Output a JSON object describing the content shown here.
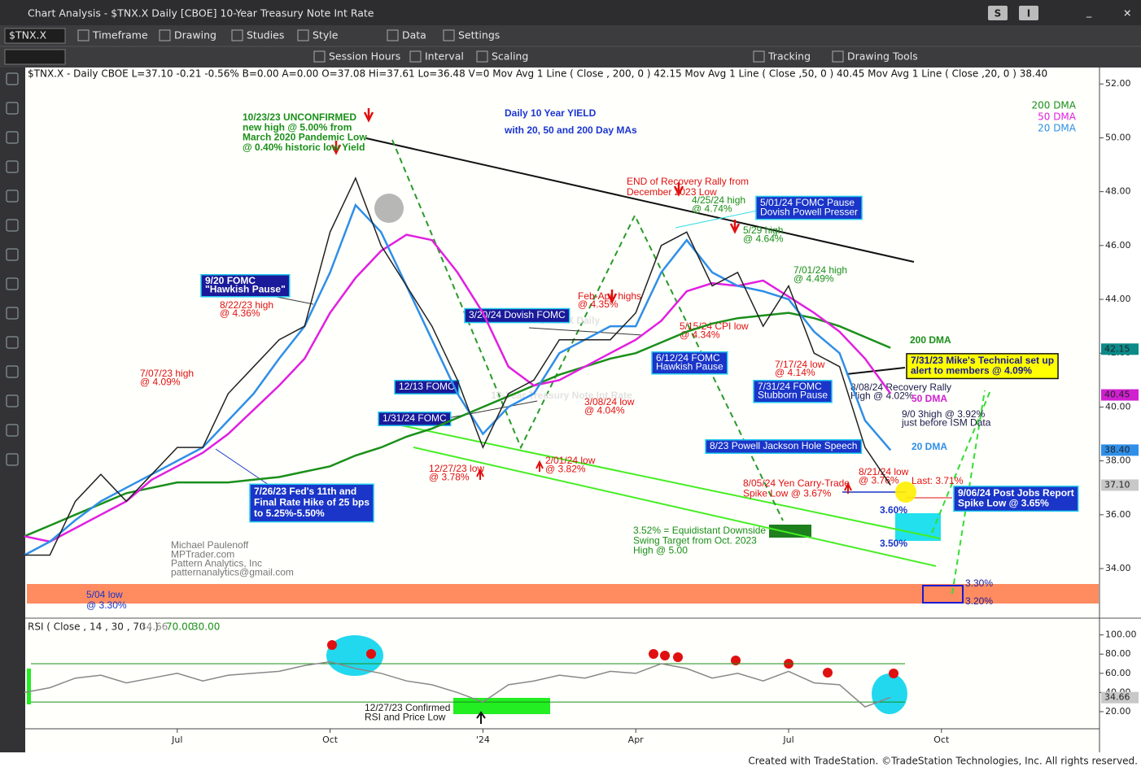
{
  "window": {
    "title": "Chart Analysis - $TNX.X Daily [CBOE] 10-Year Treasury Note Int Rate",
    "buttons": [
      "S",
      "I"
    ]
  },
  "toolbar": {
    "symbol": "$TNX.X",
    "items": [
      "Timeframe",
      "Drawing",
      "Studies",
      "Style",
      "Data",
      "Settings"
    ]
  },
  "toolbar2": [
    "Session Hours",
    "Interval",
    "Scaling",
    "Tracking",
    "Drawing Tools"
  ],
  "info_line": "$TNX.X - Daily  CBOE  L=37.10 -0.21 -0.56% B=0.00 A=0.00 O=37.08 Hi=37.61 Lo=36.48 V=0  Mov Avg 1 Line ( Close , 200, 0 ) 42.15  Mov Avg 1 Line ( Close ,50, 0 ) 40.45  Mov Avg 1 Line ( Close ,20, 0 ) 38.40",
  "chart_data": [
    {
      "type": "line",
      "color": "#222222",
      "categories": [
        null,
        null,
        null,
        null,
        null,
        null,
        "Jul",
        null,
        null,
        null,
        null,
        null,
        "Oct",
        null,
        null,
        null,
        null,
        null,
        "'24",
        null,
        null,
        null,
        null,
        null,
        "Apr",
        null,
        null,
        null,
        null,
        null,
        "Jul",
        null,
        null,
        null,
        null,
        null,
        "Oct"
      ],
      "values": [
        34.5,
        34.5,
        36.5,
        37.5,
        36.5,
        37.5,
        38.5,
        38.5,
        40.5,
        41.5,
        42.5,
        43.0,
        46.5,
        48.5,
        46.0,
        44.5,
        43.0,
        41.0,
        38.5,
        40.5,
        41.0,
        42.5,
        42.5,
        42.5,
        43.5,
        46.0,
        46.5,
        44.5,
        45.0,
        43.0,
        44.5,
        42.0,
        41.5,
        38.5,
        37.1,
        null,
        null
      ],
      "series": [
        {
          "name": "200 DMA",
          "color": "#1a8f1a",
          "values": [
            35.2,
            35.6,
            36.0,
            36.4,
            36.8,
            37.0,
            37.2,
            37.2,
            37.2,
            37.3,
            37.4,
            37.6,
            37.8,
            38.2,
            38.5,
            38.9,
            39.2,
            39.6,
            40.0,
            40.4,
            40.8,
            41.2,
            41.5,
            41.8,
            42.0,
            42.4,
            42.8,
            43.1,
            43.3,
            43.4,
            43.5,
            43.3,
            43.0,
            42.6,
            42.2,
            null,
            null
          ]
        },
        {
          "name": "50 DMA",
          "color": "#e020e0",
          "values": [
            35.2,
            35.0,
            35.5,
            36.0,
            36.5,
            37.3,
            37.8,
            38.3,
            39.0,
            39.9,
            40.8,
            41.8,
            43.5,
            44.8,
            45.8,
            46.4,
            46.2,
            45.0,
            43.5,
            41.5,
            40.8,
            41.0,
            41.5,
            42.0,
            42.5,
            43.2,
            44.3,
            44.6,
            44.5,
            44.7,
            44.1,
            43.5,
            42.8,
            41.8,
            40.5,
            null,
            null
          ]
        },
        {
          "name": "20 DMA",
          "color": "#2f8fe8",
          "values": [
            34.5,
            35.0,
            35.8,
            36.5,
            37.0,
            37.5,
            38.0,
            38.5,
            39.5,
            40.5,
            41.8,
            43.0,
            45.0,
            47.5,
            46.5,
            44.5,
            42.5,
            40.5,
            39.0,
            40.0,
            40.5,
            42.0,
            42.5,
            43.0,
            43.0,
            45.0,
            46.2,
            45.0,
            44.5,
            44.3,
            44.0,
            42.8,
            42.0,
            39.5,
            38.4,
            null,
            null
          ]
        }
      ],
      "ylim": [
        32.4,
        52.4
      ],
      "yticks": [
        {
          "value": 34,
          "label": "34.00"
        },
        {
          "value": 36,
          "label": "36.00"
        },
        {
          "value": 38,
          "label": "38.00"
        },
        {
          "value": 40,
          "label": "40.00"
        },
        {
          "value": 42,
          "label": "42.00"
        },
        {
          "value": 44,
          "label": "44.00"
        },
        {
          "value": 46,
          "label": "46.00"
        },
        {
          "value": 48,
          "label": "48.00"
        },
        {
          "value": 50,
          "label": "50.00"
        },
        {
          "value": 52,
          "label": "52.00"
        }
      ],
      "price_tags": [
        {
          "value": 42.15,
          "label": "42.15",
          "color": "#0b8a8a"
        },
        {
          "value": 40.45,
          "label": "40.45",
          "color": "#d020d0"
        },
        {
          "value": 38.4,
          "label": "38.40",
          "color": "#2f8fe8"
        },
        {
          "value": 37.1,
          "label": "37.10",
          "color": "#c8c8c8"
        }
      ]
    },
    {
      "type": "line",
      "title": "RSI ( Close , 14 , 30 , 70 , )",
      "color": "#888888",
      "values": [
        40,
        45,
        55,
        58,
        50,
        55,
        60,
        52,
        58,
        60,
        62,
        68,
        72,
        65,
        60,
        52,
        48,
        40,
        30,
        48,
        52,
        58,
        55,
        62,
        60,
        70,
        65,
        55,
        60,
        52,
        62,
        50,
        48,
        25,
        35,
        null,
        null
      ],
      "readouts": [
        {
          "value": 34.66,
          "label": "34.66"
        },
        {
          "value": 70,
          "label": "70.00"
        },
        {
          "value": 30,
          "label": "30.00"
        }
      ],
      "ylim": [
        3,
        109
      ],
      "yticks": [
        {
          "value": 20,
          "label": "20.00"
        },
        {
          "value": 40,
          "label": "40.00"
        },
        {
          "value": 60,
          "label": "60.00"
        },
        {
          "value": 80,
          "label": "80.00"
        },
        {
          "value": 100,
          "label": "100.00"
        }
      ]
    }
  ],
  "annotations": [
    {
      "lines": [
        "$TNX.X Daily"
      ],
      "color": "#e2e2e2"
    },
    {
      "lines": [
        "10-Year Treasury Note Int Rate"
      ],
      "color": "#e2e2e2"
    },
    {
      "lines": [
        "10/23/23 UNCONFIRMED",
        "new high @ 5.00% from",
        "March 2020 Pandemic Low",
        "@ 0.40% historic low Yield"
      ],
      "color": "#1a8f1a"
    },
    {
      "lines": [
        "Daily 10 Year YIELD",
        "with 20, 50 and 200 Day MAs"
      ],
      "color": "#1a35d0"
    },
    {
      "lines": [
        "END of Recovery Rally from",
        "December 2023 Low"
      ],
      "color": "#e01010"
    },
    {
      "lines": [
        "4/25/24 high",
        "@ 4.74%"
      ],
      "color": "#1a8f1a"
    },
    {
      "lines": [
        "5/01/24 FOMC Pause",
        "Dovish Powell Presser"
      ],
      "color": "#ffffff",
      "background": "#1a35c8"
    },
    {
      "lines": [
        "5/29 high",
        "@ 4.64%"
      ],
      "color": "#1a8f1a"
    },
    {
      "lines": [
        "7/01/24 high",
        "@ 4.49%"
      ],
      "color": "#1a8f1a"
    },
    {
      "lines": [
        "9/20 FOMC",
        "\"Hawkish Pause\""
      ],
      "color": "#ffffff",
      "background": "#1a1a9a"
    },
    {
      "lines": [
        "8/22/23 high",
        "@ 4.36%"
      ],
      "color": "#e01010"
    },
    {
      "lines": [
        "Feb-Apr. highs",
        "@ 4.35%"
      ],
      "color": "#e01010"
    },
    {
      "lines": [
        "3/20/24 Dovish FOMC"
      ],
      "color": "#ffffff",
      "background": "#1a1a9a"
    },
    {
      "lines": [
        "5/15/24 CPI low",
        "@ 4.34%"
      ],
      "color": "#e01010"
    },
    {
      "lines": [
        "200 DMA"
      ],
      "color": "#1a8f1a"
    },
    {
      "lines": [
        "6/12/24 FOMC",
        "Hawkish Pause"
      ],
      "color": "#ffffff",
      "background": "#1a35c8"
    },
    {
      "lines": [
        "7/17/24 low",
        "@ 4.14%"
      ],
      "color": "#e01010"
    },
    {
      "lines": [
        "7/31/23 Mike's Technical set up",
        "alert to members @ 4.09%"
      ],
      "color": "#1a1a9a",
      "background": "#ffff00"
    },
    {
      "lines": [
        "7/07/23 high",
        "@ 4.09%"
      ],
      "color": "#e01010"
    },
    {
      "lines": [
        "12/13 FOMC"
      ],
      "color": "#ffffff",
      "background": "#1a1a9a"
    },
    {
      "lines": [
        "7/31/24 FOMC",
        "Stubborn Pause"
      ],
      "color": "#ffffff",
      "background": "#1a35c8"
    },
    {
      "lines": [
        "8/08/24 Recovery Rally",
        "High @ 4.02%"
      ],
      "color": "#1a1a4a"
    },
    {
      "lines": [
        "50 DMA"
      ],
      "color": "#d020d0"
    },
    {
      "lines": [
        "3/08/24 low",
        "@ 4.04%"
      ],
      "color": "#e01010"
    },
    {
      "lines": [
        "9/0 3high @ 3.92%",
        "just before ISM Data"
      ],
      "color": "#1a1a4a"
    },
    {
      "lines": [
        "1/31/24 FOMC"
      ],
      "color": "#ffffff",
      "background": "#1a1a9a"
    },
    {
      "lines": [
        "8/23 Powell Jackson Hole Speech"
      ],
      "color": "#ffffff",
      "background": "#1a35c8"
    },
    {
      "lines": [
        "20 DMA"
      ],
      "color": "#2f8fe8"
    },
    {
      "lines": [
        "2/01/24 low",
        "@ 3.82%"
      ],
      "color": "#e01010"
    },
    {
      "lines": [
        "12/27/23 low",
        "@ 3.78%"
      ],
      "color": "#e01010"
    },
    {
      "lines": [
        "8/21/24 low",
        "@ 3.76%"
      ],
      "color": "#e01010"
    },
    {
      "lines": [
        "Last: 3.71%"
      ],
      "color": "#e01010"
    },
    {
      "lines": [
        "8/05/24 Yen Carry-Trade",
        "Spike Low @ 3.67%"
      ],
      "color": "#e01010"
    },
    {
      "lines": [
        "7/26/23 Fed's 11th and",
        "Final Rate Hike of 25 bps",
        "to 5.25%-5.50%"
      ],
      "color": "#ffffff",
      "background": "#1a35c8"
    },
    {
      "lines": [
        "9/06/24 Post Jobs Report",
        "Spike Low @ 3.65%"
      ],
      "color": "#ffffff",
      "background": "#1a35c8"
    },
    {
      "lines": [
        "3.60%"
      ],
      "color": "#1a35c8"
    },
    {
      "lines": [
        "3.52% = Equidistant Downside",
        "Swing Target from Oct. 2023",
        "High @ 5.00"
      ],
      "color": "#1a8f1a"
    },
    {
      "lines": [
        "3.50%"
      ],
      "color": "#1a35c8"
    },
    {
      "lines": [
        "Michael Paulenoff",
        "MPTrader.com",
        "Pattern Analytics, Inc",
        "patternanalytics@gmail.com"
      ],
      "color": "#777777"
    },
    {
      "lines": [
        "5/04 low",
        "@ 3.30%"
      ],
      "color": "#1a35c8"
    },
    {
      "lines": [
        "3.30%"
      ],
      "color": "#1a1a9a"
    },
    {
      "lines": [
        "3.20%"
      ],
      "color": "#1a1a9a"
    },
    {
      "lines": [
        "12/27/23 Confirmed",
        "RSI and Price Low"
      ],
      "color": "#1a1a1a"
    }
  ],
  "footer": "Created with TradeStation. ©TradeStation Technologies, Inc. All rights reserved."
}
